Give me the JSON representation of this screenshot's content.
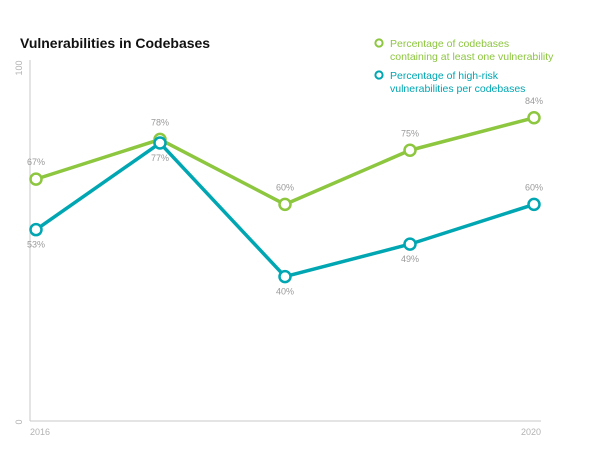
{
  "chart_data": {
    "type": "line",
    "title": "Vulnerabilities in Codebases",
    "x_labels": [
      "2016",
      "",
      "",
      "",
      "2020"
    ],
    "ylim": [
      0,
      100
    ],
    "y_tick_labels": [
      "0",
      "100"
    ],
    "grid": false,
    "legend_position": "top-right",
    "series": [
      {
        "name": "Percentage of codebases containing at least one vulnerability",
        "legend_lines": [
          "Percentage of codebases",
          "containing at least one vulnerability"
        ],
        "color": "#8dc63f",
        "values": [
          67,
          78,
          60,
          75,
          84
        ],
        "labels": [
          "67%",
          "78%",
          "60%",
          "75%",
          "84%"
        ]
      },
      {
        "name": "Percentage of high-risk vulnerabilities per codebases",
        "legend_lines": [
          "Percentage of high-risk",
          "vulnerabilities per codebases"
        ],
        "color": "#00a6b2",
        "values": [
          53,
          77,
          40,
          49,
          60
        ],
        "labels": [
          "53%",
          "77%",
          "40%",
          "49%",
          "60%"
        ]
      }
    ]
  }
}
